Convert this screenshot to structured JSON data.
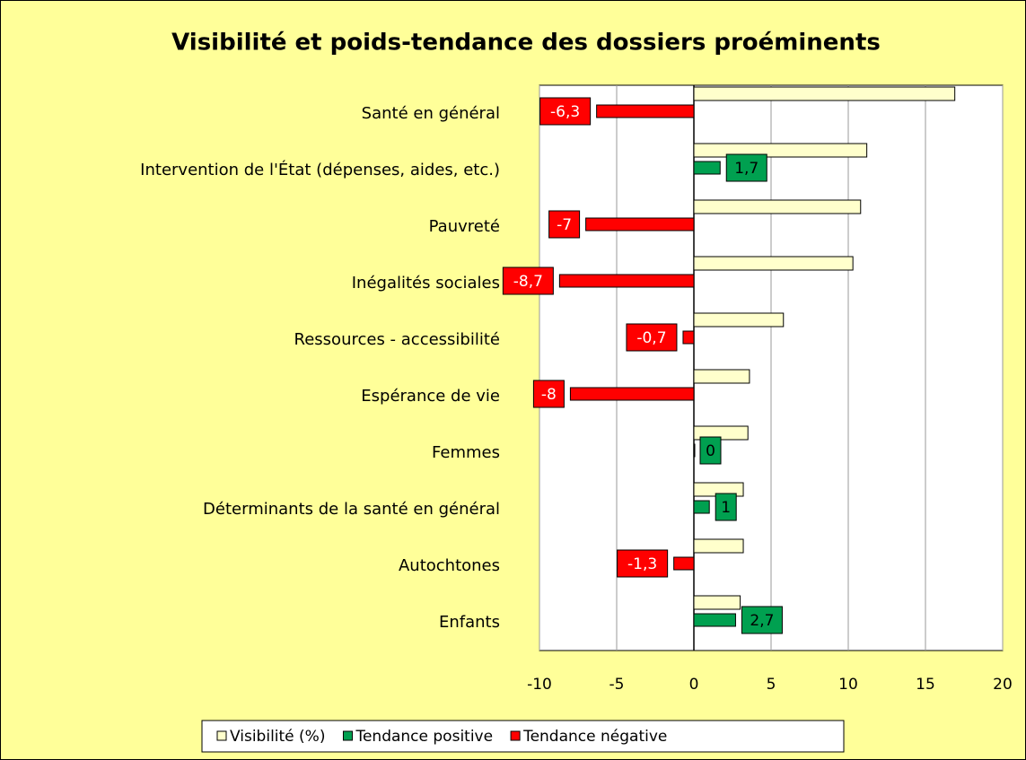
{
  "chart_data": {
    "type": "bar",
    "orientation": "horizontal",
    "title": "Visibilité et poids-tendance des dossiers proéminents",
    "categories": [
      "Santé en général",
      "Intervention de l'État (dépenses, aides, etc.)",
      "Pauvreté",
      "Inégalités sociales",
      "Ressources - accessibilité",
      "Espérance de vie",
      "Femmes",
      "Déterminants de la santé en général",
      "Autochtones",
      "Enfants"
    ],
    "series": [
      {
        "name": "Visibilité (%)",
        "color": "#ffffcc",
        "slot": 0,
        "values": [
          16.9,
          11.2,
          10.8,
          10.3,
          5.8,
          3.6,
          3.5,
          3.2,
          3.2,
          3.0
        ]
      },
      {
        "name": "Tendance positive",
        "color": "#00a050",
        "slot": 1,
        "label_color": "#000000",
        "values": [
          null,
          1.7,
          null,
          null,
          null,
          null,
          0,
          1,
          null,
          2.7
        ],
        "value_labels": [
          null,
          "1,7",
          null,
          null,
          null,
          null,
          "0",
          "1",
          null,
          "2,7"
        ]
      },
      {
        "name": "Tendance négative",
        "color": "#ff0000",
        "slot": 1,
        "label_color": "#ffffff",
        "values": [
          -6.3,
          null,
          -7,
          -8.7,
          -0.7,
          -8,
          null,
          null,
          -1.3,
          null
        ],
        "value_labels": [
          "-6,3",
          null,
          "-7",
          "-8,7",
          "-0,7",
          "-8",
          null,
          null,
          "-1,3",
          null
        ]
      }
    ],
    "xlim": [
      -10,
      20
    ],
    "xticks": [
      -10,
      -5,
      0,
      5,
      10,
      15,
      20
    ],
    "grid": true,
    "legend": "bottom"
  }
}
